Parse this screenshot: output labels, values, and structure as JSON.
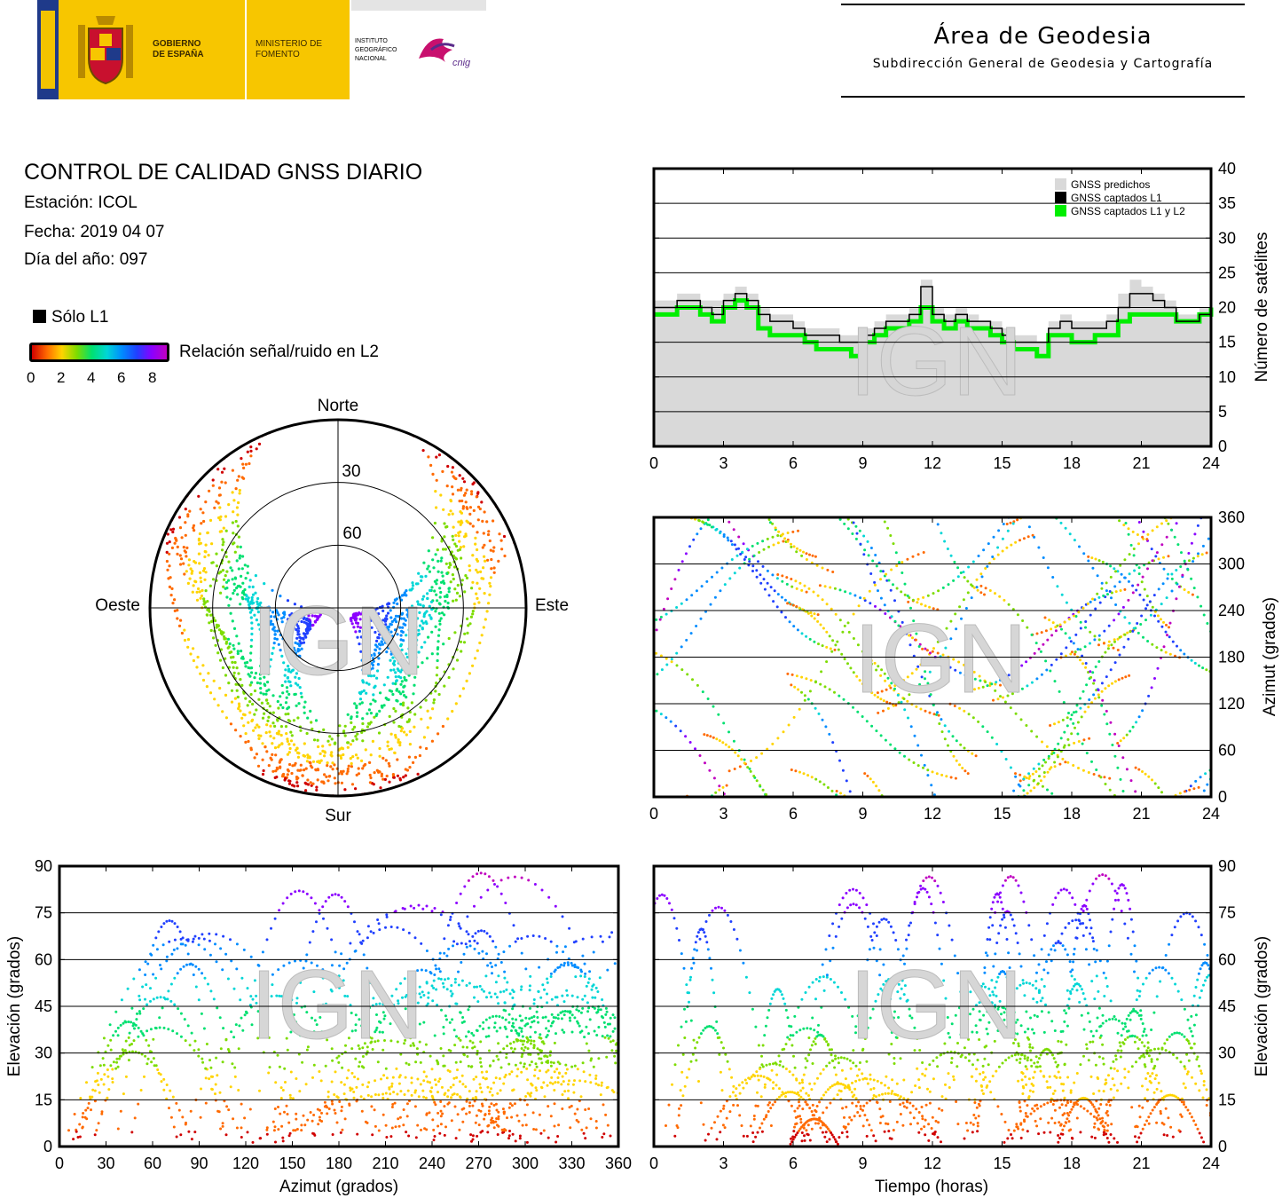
{
  "header": {
    "gobierno": "GOBIERNO DE ESPAÑA",
    "ministerio": "MINISTERIO DE FOMENTO",
    "instituto": "INSTITUTO GEOGRÁFICO NACIONAL",
    "cnig": "cnig",
    "area_title": "Área de Geodesia",
    "area_subtitle": "Subdirección General de Geodesia y Cartografía"
  },
  "report": {
    "title": "CONTROL DE CALIDAD GNSS DIARIO",
    "station": "Estación: ICOL",
    "date": "Fecha: 2019 04 07",
    "doy": "Día del año: 097"
  },
  "legend": {
    "l1_only": "Sólo L1",
    "snr_label": "Relación señal/ruido en L2",
    "snr_ticks": [
      "0",
      "2",
      "4",
      "6",
      "8"
    ]
  },
  "watermark": "IGN",
  "colors": {
    "snr_scale": [
      "#d00000",
      "#ff6a00",
      "#ffd400",
      "#7ddc00",
      "#00e070",
      "#00d6d6",
      "#008cff",
      "#2040ff",
      "#8b00ff",
      "#c000c0"
    ],
    "predicted": "#d9d9d9",
    "l1": "#000000",
    "l1l2": "#00ee00"
  },
  "chart_data": [
    {
      "type": "area",
      "name": "satellite_count",
      "x_range": [
        0,
        24
      ],
      "y_range": [
        0,
        40
      ],
      "x_ticks": [
        "0",
        "3",
        "6",
        "9",
        "12",
        "15",
        "18",
        "21",
        "24"
      ],
      "y_ticks": [
        "0",
        "5",
        "10",
        "15",
        "20",
        "25",
        "30",
        "35",
        "40"
      ],
      "ylabel": "Número de satélites",
      "legend_position": "top-right",
      "series": [
        {
          "name": "GNSS predichos",
          "color": "#d9d9d9",
          "x": [
            0,
            0.5,
            1,
            1.5,
            2,
            2.5,
            3,
            3.5,
            4,
            4.5,
            5,
            5.5,
            6,
            6.5,
            7,
            7.5,
            8,
            8.5,
            9,
            9.5,
            10,
            10.5,
            11,
            11.5,
            12,
            12.5,
            13,
            13.5,
            14,
            14.5,
            15,
            15.5,
            16,
            16.5,
            17,
            17.5,
            18,
            18.5,
            19,
            19.5,
            20,
            20.5,
            21,
            21.5,
            22,
            22.5,
            23,
            23.5,
            24
          ],
          "y": [
            21,
            21,
            22,
            22,
            21,
            21,
            22,
            23,
            22,
            20,
            19,
            19,
            18,
            17,
            17,
            17,
            16,
            16,
            17,
            18,
            19,
            19,
            20,
            24,
            20,
            19,
            20,
            19,
            18,
            18,
            17,
            16,
            16,
            15,
            18,
            19,
            18,
            18,
            18,
            19,
            22,
            24,
            23,
            22,
            21,
            19,
            19,
            20,
            21
          ]
        },
        {
          "name": "GNSS captados L1",
          "color": "#000000",
          "x": [
            0,
            0.5,
            1,
            1.5,
            2,
            2.5,
            3,
            3.5,
            4,
            4.5,
            5,
            5.5,
            6,
            6.5,
            7,
            7.5,
            8,
            8.5,
            9,
            9.5,
            10,
            10.5,
            11,
            11.5,
            12,
            12.5,
            13,
            13.5,
            14,
            14.5,
            15,
            15.5,
            16,
            16.5,
            17,
            17.5,
            18,
            18.5,
            19,
            19.5,
            20,
            20.5,
            21,
            21.5,
            22,
            22.5,
            23,
            23.5,
            24
          ],
          "y": [
            20,
            20,
            21,
            21,
            20,
            19,
            21,
            22,
            21,
            19,
            18,
            18,
            17,
            16,
            16,
            16,
            15,
            15,
            16,
            17,
            18,
            18,
            19,
            23,
            19,
            18,
            19,
            18,
            18,
            17,
            16,
            15,
            15,
            15,
            17,
            18,
            17,
            17,
            17,
            18,
            20,
            22,
            22,
            21,
            20,
            18,
            18,
            19,
            20
          ]
        },
        {
          "name": "GNSS captados L1 y L2",
          "color": "#00ee00",
          "x": [
            0,
            0.5,
            1,
            1.5,
            2,
            2.5,
            3,
            3.5,
            4,
            4.5,
            5,
            5.5,
            6,
            6.5,
            7,
            7.5,
            8,
            8.5,
            9,
            9.5,
            10,
            10.5,
            11,
            11.5,
            12,
            12.5,
            13,
            13.5,
            14,
            14.5,
            15,
            15.5,
            16,
            16.5,
            17,
            17.5,
            18,
            18.5,
            19,
            19.5,
            20,
            20.5,
            21,
            21.5,
            22,
            22.5,
            23,
            23.5,
            24
          ],
          "y": [
            19,
            19,
            20,
            20,
            19,
            18,
            20,
            21,
            20,
            17,
            16,
            16,
            16,
            15,
            14,
            14,
            14,
            13,
            15,
            16,
            17,
            17,
            18,
            20,
            18,
            17,
            18,
            17,
            17,
            16,
            15,
            14,
            14,
            13,
            16,
            16,
            15,
            15,
            16,
            16,
            18,
            19,
            19,
            19,
            19,
            18,
            18,
            19,
            20
          ]
        }
      ]
    },
    {
      "type": "scatter",
      "name": "azimuth_vs_time",
      "x_range": [
        0,
        24
      ],
      "y_range": [
        0,
        360
      ],
      "x_ticks": [
        "0",
        "3",
        "6",
        "9",
        "12",
        "15",
        "18",
        "21",
        "24"
      ],
      "y_ticks": [
        "0",
        "60",
        "120",
        "180",
        "240",
        "300",
        "360"
      ],
      "ylabel": "Azimut (grados)"
    },
    {
      "type": "scatter",
      "name": "skyplot",
      "labels": {
        "north": "Norte",
        "south": "Sur",
        "east": "Este",
        "west": "Oeste"
      },
      "ring_labels": [
        "30",
        "60"
      ],
      "elevation_rings": [
        0,
        30,
        60
      ]
    },
    {
      "type": "scatter",
      "name": "elevation_vs_azimuth",
      "x_range": [
        0,
        360
      ],
      "y_range": [
        0,
        90
      ],
      "x_ticks": [
        "0",
        "30",
        "60",
        "90",
        "120",
        "150",
        "180",
        "210",
        "240",
        "270",
        "300",
        "330",
        "360"
      ],
      "y_ticks": [
        "0",
        "15",
        "30",
        "45",
        "60",
        "75",
        "90"
      ],
      "xlabel": "Azimut (grados)",
      "ylabel": "Elevación (grados)"
    },
    {
      "type": "scatter",
      "name": "elevation_vs_time",
      "x_range": [
        0,
        24
      ],
      "y_range": [
        0,
        90
      ],
      "x_ticks": [
        "0",
        "3",
        "6",
        "9",
        "12",
        "15",
        "18",
        "21",
        "24"
      ],
      "y_ticks": [
        "0",
        "15",
        "30",
        "45",
        "60",
        "75",
        "90"
      ],
      "xlabel": "Tiempo (horas)",
      "ylabel": "Elevación (grados)"
    }
  ]
}
